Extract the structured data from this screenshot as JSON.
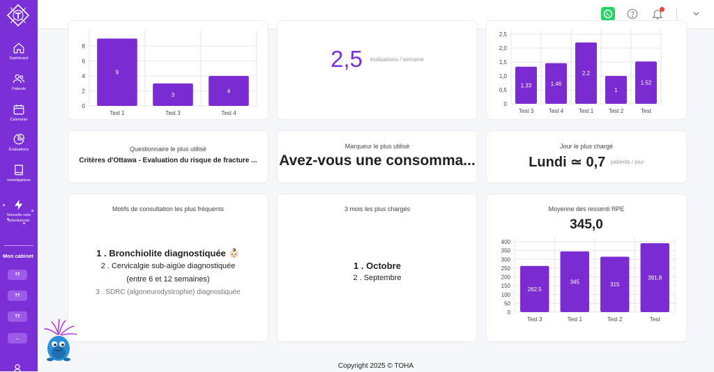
{
  "sidebar": {
    "items": [
      {
        "label": "Dashboard",
        "icon": "home-icon"
      },
      {
        "label": "Patients",
        "icon": "users-icon"
      },
      {
        "label": "Calendrier",
        "icon": "calendar-icon"
      },
      {
        "label": "Évaluations",
        "icon": "pie-chart-icon"
      },
      {
        "label": "Investigations",
        "icon": "book-icon"
      },
      {
        "label": "Nouvelle note",
        "icon": "lightning-icon"
      }
    ],
    "sublabel": "sélectionnée",
    "cabinet_title": "Mon cabinet",
    "cabinet_buttons": [
      "TT",
      "TT",
      "TT",
      "..."
    ]
  },
  "cards": {
    "eval_rate": {
      "value": "2,5",
      "unit": "évaluations / semaine"
    },
    "questionnaire": {
      "title": "Questionnaire le plus utilisé",
      "value": "Critères d'Ottawa - Evaluation du risque de fracture ..."
    },
    "marker": {
      "title": "Marqueur le plus utilisé",
      "value": "Avez-vous une consomma..."
    },
    "busiest_day": {
      "title": "Jour le plus chargé",
      "value": "Lundi ≃ 0,7",
      "unit": "patients / jour"
    },
    "motifs": {
      "title": "Motifs de consultation les plus fréquents",
      "items": [
        "1 . Bronchiolite diagnostiquée 👶🏻",
        "2 . Cervicalgie sub-aigüe diagnostiquée",
        "(entre 6 et 12 semaines)",
        "3 . SDRC (algoneurodystrophie) diagnostiquée"
      ]
    },
    "months": {
      "title": "3 mois les plus chargés",
      "items": [
        "1 . Octobre",
        "2 . Septembre"
      ]
    },
    "rpe": {
      "title": "Moyenne des ressenti RPE",
      "value": "345,0"
    }
  },
  "footer": "Copyright 2025 © TOHA",
  "colors": {
    "accent": "#7b2fd6",
    "bar": "#7b2bd2",
    "whatsapp": "#25d366",
    "notification": "#f44336"
  },
  "chart_data": [
    {
      "type": "bar",
      "categories": [
        "Test 1",
        "Test 3",
        "Test 4"
      ],
      "values": [
        9,
        3,
        4
      ],
      "ylim": [
        0,
        9.5
      ],
      "yticks": [
        0,
        2,
        4,
        6,
        8
      ],
      "grid": true
    },
    {
      "type": "bar",
      "categories": [
        "Test 3",
        "Test 4",
        "Test 1",
        "Test 2",
        "Test"
      ],
      "values": [
        1.33,
        1.46,
        2.2,
        1,
        1.52
      ],
      "ylim": [
        0,
        2.5
      ],
      "yticks": [
        "0",
        "0,5",
        "1,0",
        "1,5",
        "2,0",
        "2,5"
      ],
      "grid": true
    },
    {
      "type": "bar",
      "categories": [
        "Test 3",
        "Test 1",
        "Test 2",
        "Test"
      ],
      "values": [
        262.5,
        345,
        315,
        391.8
      ],
      "ylim": [
        0,
        400
      ],
      "yticks": [
        0,
        50,
        100,
        150,
        200,
        250,
        300,
        350,
        400
      ],
      "grid": true
    }
  ]
}
